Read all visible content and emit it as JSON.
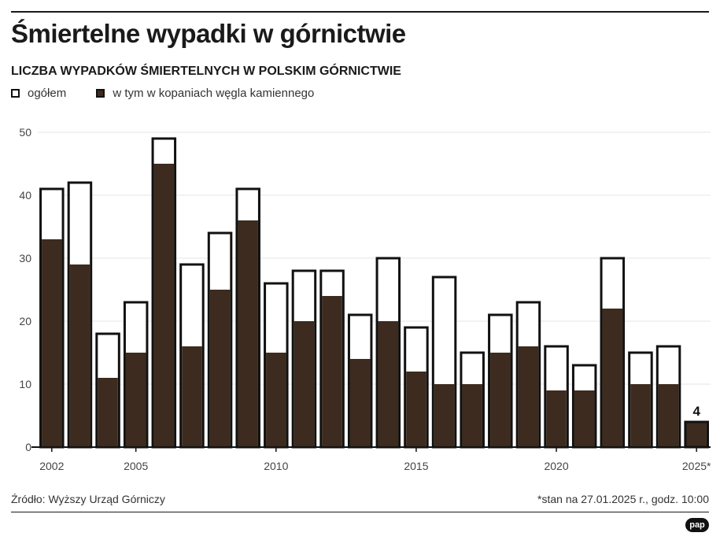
{
  "header": {
    "title": "Śmiertelne wypadki w górnictwie",
    "subtitle": "LICZBA WYPADKÓW ŚMIERTELNYCH W POLSKIM GÓRNICTWIE"
  },
  "legend": {
    "total_label": "ogółem",
    "coal_label": "w tym w kopaniach węgla kamiennego"
  },
  "colors": {
    "coal": "#3d2b1f",
    "total_fill": "#ffffff",
    "bar_outline": "#111111",
    "grid": "#e6e6e6"
  },
  "chart_data": {
    "type": "bar",
    "title": "Śmiertelne wypadki w górnictwie",
    "subtitle": "LICZBA WYPADKÓW ŚMIERTELNYCH W POLSKIM GÓRNICTWIE",
    "categories": [
      2002,
      2003,
      2004,
      2005,
      2006,
      2007,
      2008,
      2009,
      2010,
      2011,
      2012,
      2013,
      2014,
      2015,
      2016,
      2017,
      2018,
      2019,
      2020,
      2021,
      2022,
      2023,
      2024,
      2025
    ],
    "series": [
      {
        "name": "ogółem",
        "values": [
          41,
          42,
          18,
          23,
          49,
          29,
          34,
          41,
          26,
          28,
          28,
          21,
          30,
          19,
          27,
          15,
          21,
          23,
          16,
          13,
          30,
          15,
          16,
          4
        ]
      },
      {
        "name": "w tym w kopaniach węgla kamiennego",
        "values": [
          33,
          29,
          11,
          15,
          45,
          16,
          25,
          36,
          15,
          20,
          24,
          14,
          20,
          12,
          10,
          10,
          15,
          16,
          9,
          9,
          22,
          10,
          10,
          4
        ]
      }
    ],
    "ylim": [
      0,
      50
    ],
    "yticks": [
      0,
      10,
      20,
      30,
      40,
      50
    ],
    "xtick_labels": [
      {
        "year": 2002,
        "label": "2002"
      },
      {
        "year": 2005,
        "label": "2005"
      },
      {
        "year": 2010,
        "label": "2010"
      },
      {
        "year": 2015,
        "label": "2015"
      },
      {
        "year": 2020,
        "label": "2020"
      },
      {
        "year": 2025,
        "label": "2025*"
      }
    ],
    "annotations": [
      {
        "year": 2025,
        "text": "4"
      }
    ],
    "grid": true,
    "legend_position": "top-left"
  },
  "footer": {
    "source": "Źródło: Wyższy Urząd Górniczy",
    "note": "*stan na 27.01.2025 r., godz. 10:00",
    "logo": "pap"
  }
}
